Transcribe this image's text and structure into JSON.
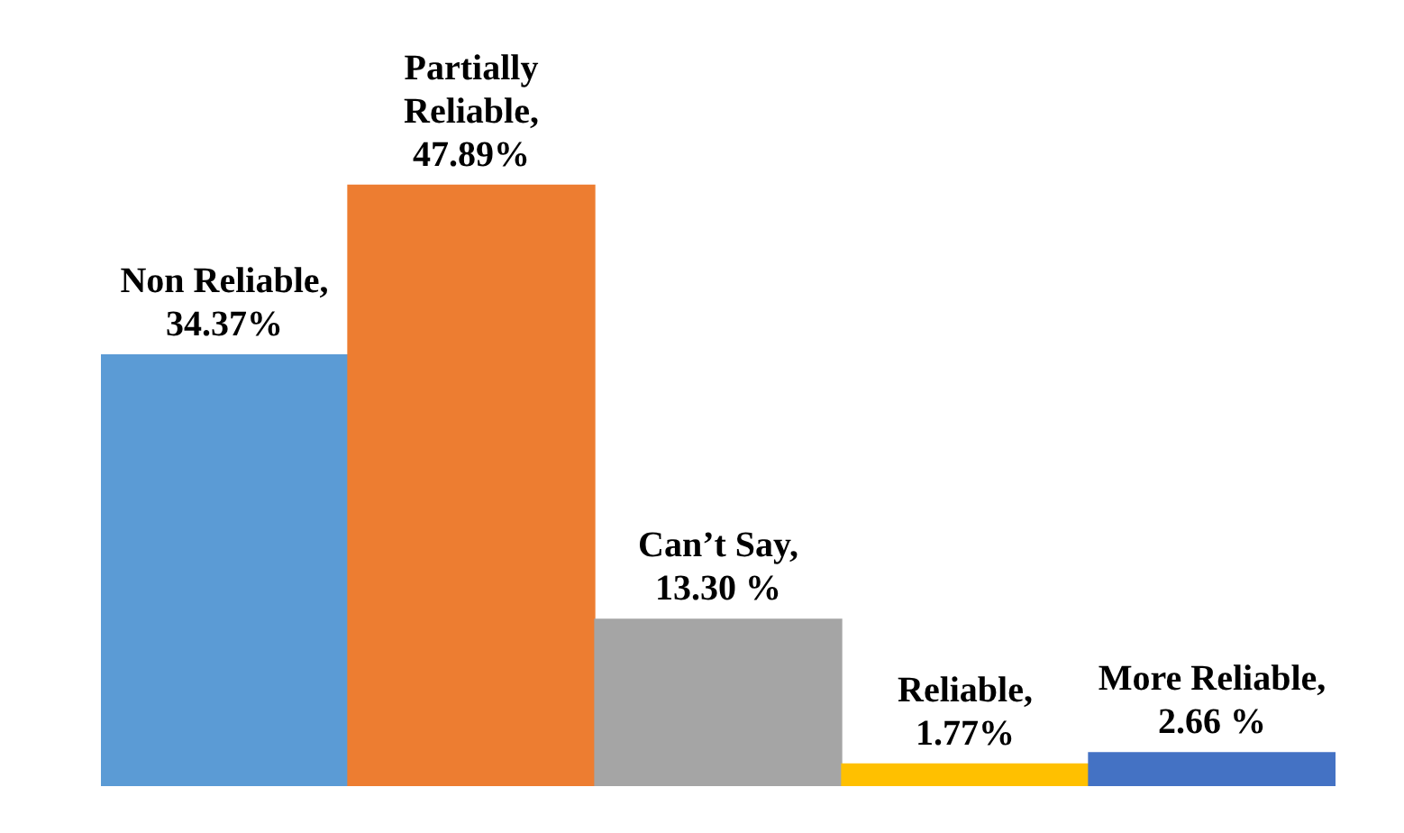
{
  "chart_data": {
    "type": "bar",
    "categories": [
      null,
      null,
      null,
      null,
      null
    ],
    "values": [
      34.37,
      47.89,
      13.3,
      1.77,
      2.66
    ],
    "colors": [
      "#5b9bd5",
      "#ed7d31",
      "#a5a5a5",
      "#ffc000",
      "#4472c4"
    ],
    "value_labels": [
      "Non Reliable, 34.37%",
      "Partially Reliable, 47.89%",
      "Can’t Say, 13.30 %",
      "Reliable, 1.77%",
      "More Reliable, 2.66 %"
    ],
    "tick_labels": false,
    "grid": false,
    "legend": false
  }
}
